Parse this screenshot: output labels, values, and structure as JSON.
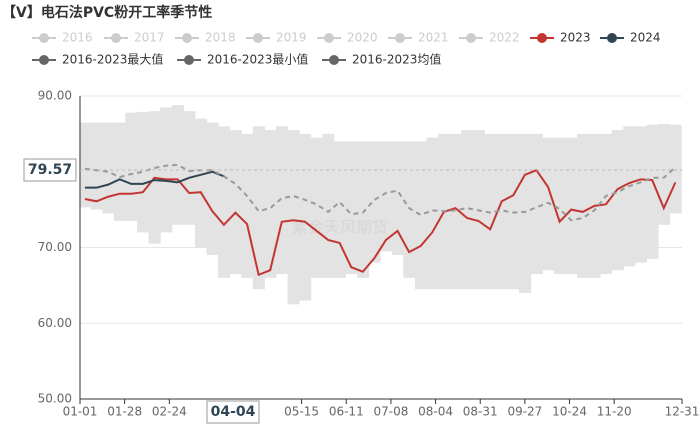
{
  "chart_data": {
    "type": "line",
    "title": "【V】电石法PVC粉开工率季节性",
    "x": [
      3,
      10,
      17,
      24,
      31,
      38,
      45,
      52,
      59,
      66,
      73,
      80,
      87,
      94,
      101,
      108,
      115,
      122,
      129,
      136,
      143,
      150,
      157,
      164,
      171,
      178,
      185,
      192,
      199,
      206,
      213,
      220,
      227,
      234,
      241,
      248,
      255,
      262,
      269,
      276,
      283,
      290,
      297,
      304,
      311,
      318,
      325,
      332,
      339,
      346,
      353,
      360
    ],
    "xlim": [
      0,
      364
    ],
    "xticks": [
      {
        "value": 0,
        "label": "01-01"
      },
      {
        "value": 27,
        "label": "01-28"
      },
      {
        "value": 54,
        "label": "02-24"
      },
      {
        "value": 134,
        "label": "05-15"
      },
      {
        "value": 161,
        "label": "06-11"
      },
      {
        "value": 188,
        "label": "07-08"
      },
      {
        "value": 215,
        "label": "08-04"
      },
      {
        "value": 242,
        "label": "08-31"
      },
      {
        "value": 269,
        "label": "09-27"
      },
      {
        "value": 296,
        "label": "10-24"
      },
      {
        "value": 323,
        "label": "11-20"
      },
      {
        "value": 364,
        "label": "12-31"
      }
    ],
    "ylim": [
      50,
      90
    ],
    "yticks": [
      {
        "value": 50,
        "label": "50.00"
      },
      {
        "value": 60,
        "label": "60.00"
      },
      {
        "value": 70,
        "label": "70.00"
      },
      {
        "value": 80,
        "label": "80.00"
      },
      {
        "value": 90,
        "label": "90.00"
      }
    ],
    "grid": true,
    "watermark": "紫金天风期货",
    "cursor": {
      "x_label": "04-04",
      "y_label": "79.57"
    },
    "series": [
      {
        "name": "2016",
        "color": "#cccccc",
        "visible": false
      },
      {
        "name": "2017",
        "color": "#cccccc",
        "visible": false
      },
      {
        "name": "2018",
        "color": "#cccccc",
        "visible": false
      },
      {
        "name": "2019",
        "color": "#cccccc",
        "visible": false
      },
      {
        "name": "2020",
        "color": "#cccccc",
        "visible": false
      },
      {
        "name": "2021",
        "color": "#cccccc",
        "visible": false
      },
      {
        "name": "2022",
        "color": "#cccccc",
        "visible": false
      },
      {
        "name": "2023",
        "color": "#c23531",
        "visible": true,
        "style": "line",
        "values": [
          76.4,
          76.1,
          76.7,
          77.1,
          77.1,
          77.3,
          79.2,
          79.0,
          79.0,
          77.2,
          77.3,
          74.8,
          73.0,
          74.6,
          73.1,
          66.4,
          67.0,
          73.4,
          73.6,
          73.4,
          72.2,
          71.0,
          70.6,
          67.4,
          66.8,
          68.6,
          71.0,
          72.2,
          69.4,
          70.2,
          72.0,
          74.7,
          75.2,
          73.9,
          73.5,
          72.4,
          76.1,
          76.9,
          79.6,
          80.2,
          78.0,
          73.4,
          75.0,
          74.7,
          75.5,
          75.7,
          77.7,
          78.5,
          79.0,
          78.9,
          75.2,
          78.6
        ]
      },
      {
        "name": "2024",
        "color": "#2f4554",
        "visible": true,
        "style": "line",
        "values": [
          77.9,
          77.9,
          78.3,
          79.0,
          78.4,
          78.4,
          78.9,
          78.8,
          78.6,
          79.2,
          79.6,
          80.0,
          79.4,
          null,
          null,
          null,
          null,
          null,
          null,
          null,
          null,
          null,
          null,
          null,
          null,
          null,
          null,
          null,
          null,
          null,
          null,
          null,
          null,
          null,
          null,
          null,
          null,
          null,
          null,
          null,
          null,
          null,
          null,
          null,
          null,
          null,
          null,
          null,
          null,
          null,
          null,
          null
        ]
      },
      {
        "name": "2016-2023最大值",
        "color": "#666666",
        "visible": true,
        "style": "band-top",
        "values": [
          86.5,
          86.5,
          86.5,
          86.5,
          87.8,
          87.9,
          88.0,
          88.5,
          88.8,
          88.0,
          87.0,
          86.5,
          86.0,
          85.5,
          85.0,
          86.0,
          85.5,
          86.0,
          85.5,
          85.0,
          84.5,
          85.0,
          84.0,
          84.0,
          84.0,
          84.0,
          84.0,
          84.0,
          84.0,
          84.0,
          84.5,
          85.0,
          85.0,
          85.5,
          85.5,
          85.0,
          85.0,
          85.0,
          85.0,
          85.0,
          84.5,
          84.5,
          84.5,
          85.0,
          85.0,
          85.0,
          85.5,
          86.0,
          86.0,
          86.2,
          86.3,
          86.2
        ]
      },
      {
        "name": "2016-2023最小值",
        "color": "#666666",
        "visible": true,
        "style": "band-bottom",
        "values": [
          75.3,
          75.0,
          74.5,
          73.5,
          73.5,
          72.0,
          70.5,
          72.0,
          73.0,
          73.0,
          70.0,
          69.0,
          66.0,
          66.5,
          66.0,
          64.5,
          66.0,
          66.5,
          62.5,
          63.0,
          66.0,
          66.0,
          66.0,
          66.5,
          66.0,
          68.0,
          69.5,
          69.0,
          66.0,
          64.5,
          64.5,
          64.5,
          64.5,
          64.5,
          64.5,
          64.5,
          64.5,
          64.5,
          64.0,
          66.5,
          67.0,
          66.5,
          66.5,
          66.0,
          66.0,
          66.5,
          67.0,
          67.5,
          68.0,
          68.5,
          73.0,
          74.5
        ]
      },
      {
        "name": "2016-2023均值",
        "color": "#666666",
        "visible": true,
        "style": "dashed",
        "values": [
          80.4,
          80.2,
          80.0,
          79.3,
          79.7,
          80.0,
          80.5,
          80.8,
          80.9,
          80.1,
          80.2,
          80.2,
          79.4,
          78.4,
          76.8,
          74.8,
          75.2,
          76.5,
          76.8,
          76.3,
          75.7,
          74.7,
          76.0,
          74.4,
          74.6,
          76.3,
          77.2,
          77.5,
          75.2,
          74.3,
          74.9,
          74.8,
          74.9,
          75.2,
          74.9,
          74.6,
          74.9,
          74.6,
          74.7,
          75.3,
          75.9,
          75.1,
          73.6,
          73.9,
          74.9,
          76.8,
          77.3,
          78.1,
          78.6,
          79.2,
          79.2,
          80.6
        ]
      }
    ]
  }
}
